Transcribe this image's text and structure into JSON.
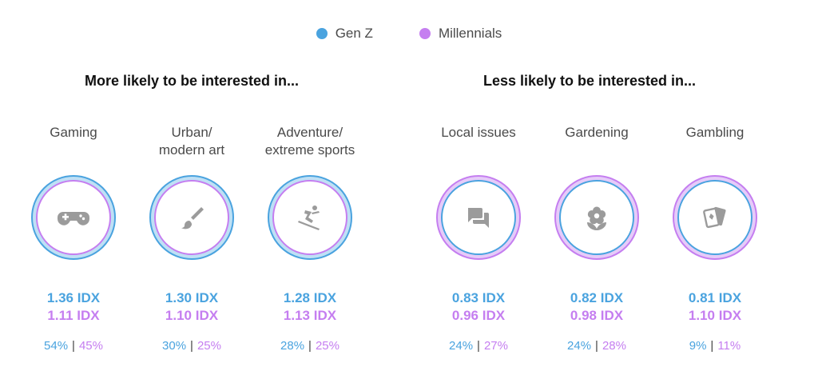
{
  "legend": {
    "genz_label": "Gen Z",
    "millennials_label": "Millennials"
  },
  "colors": {
    "genz": "#4aa3df",
    "millennials": "#c57ef0",
    "ring_fill_genz": "#bfe0f5",
    "ring_fill_mill": "#e6cbf9",
    "icon": "#9b9b9b",
    "separator": "#444444"
  },
  "sections": {
    "more_title": "More likely to be interested in...",
    "less_title": "Less likely to be interested in..."
  },
  "chart_data": {
    "type": "proportional-ring",
    "series": [
      {
        "name": "Gen Z",
        "color": "#4aa3df"
      },
      {
        "name": "Millennials",
        "color": "#c57ef0"
      }
    ],
    "items": [
      {
        "label": "Gaming",
        "icon": "gamepad-icon",
        "genz_idx_value": 1.36,
        "mill_idx_value": 1.11,
        "genz_idx": "1.36 IDX",
        "mill_idx": "1.11 IDX",
        "genz_pct_value": 54,
        "mill_pct_value": 45,
        "genz_pct": "54%",
        "mill_pct": "45%",
        "group": "more"
      },
      {
        "label": "Urban/\nmodern art",
        "icon": "paintbrush-icon",
        "genz_idx_value": 1.3,
        "mill_idx_value": 1.1,
        "genz_idx": "1.30 IDX",
        "mill_idx": "1.10 IDX",
        "genz_pct_value": 30,
        "mill_pct_value": 25,
        "genz_pct": "30%",
        "mill_pct": "25%",
        "group": "more"
      },
      {
        "label": "Adventure/\nextreme sports",
        "icon": "skier-icon",
        "genz_idx_value": 1.28,
        "mill_idx_value": 1.13,
        "genz_idx": "1.28 IDX",
        "mill_idx": "1.13 IDX",
        "genz_pct_value": 28,
        "mill_pct_value": 25,
        "genz_pct": "28%",
        "mill_pct": "25%",
        "group": "more"
      },
      {
        "label": "Local issues",
        "icon": "chat-bubbles-icon",
        "genz_idx_value": 0.83,
        "mill_idx_value": 0.96,
        "genz_idx": "0.83 IDX",
        "mill_idx": "0.96 IDX",
        "genz_pct_value": 24,
        "mill_pct_value": 27,
        "genz_pct": "24%",
        "mill_pct": "27%",
        "group": "less"
      },
      {
        "label": "Gardening",
        "icon": "flower-icon",
        "genz_idx_value": 0.82,
        "mill_idx_value": 0.98,
        "genz_idx": "0.82 IDX",
        "mill_idx": "0.98 IDX",
        "genz_pct_value": 24,
        "mill_pct_value": 28,
        "genz_pct": "24%",
        "mill_pct": "28%",
        "group": "less"
      },
      {
        "label": "Gambling",
        "icon": "cards-icon",
        "genz_idx_value": 0.81,
        "mill_idx_value": 1.1,
        "genz_idx": "0.81 IDX",
        "mill_idx": "1.10 IDX",
        "genz_pct_value": 9,
        "mill_pct_value": 11,
        "genz_pct": "9%",
        "mill_pct": "11%",
        "group": "less"
      }
    ]
  }
}
